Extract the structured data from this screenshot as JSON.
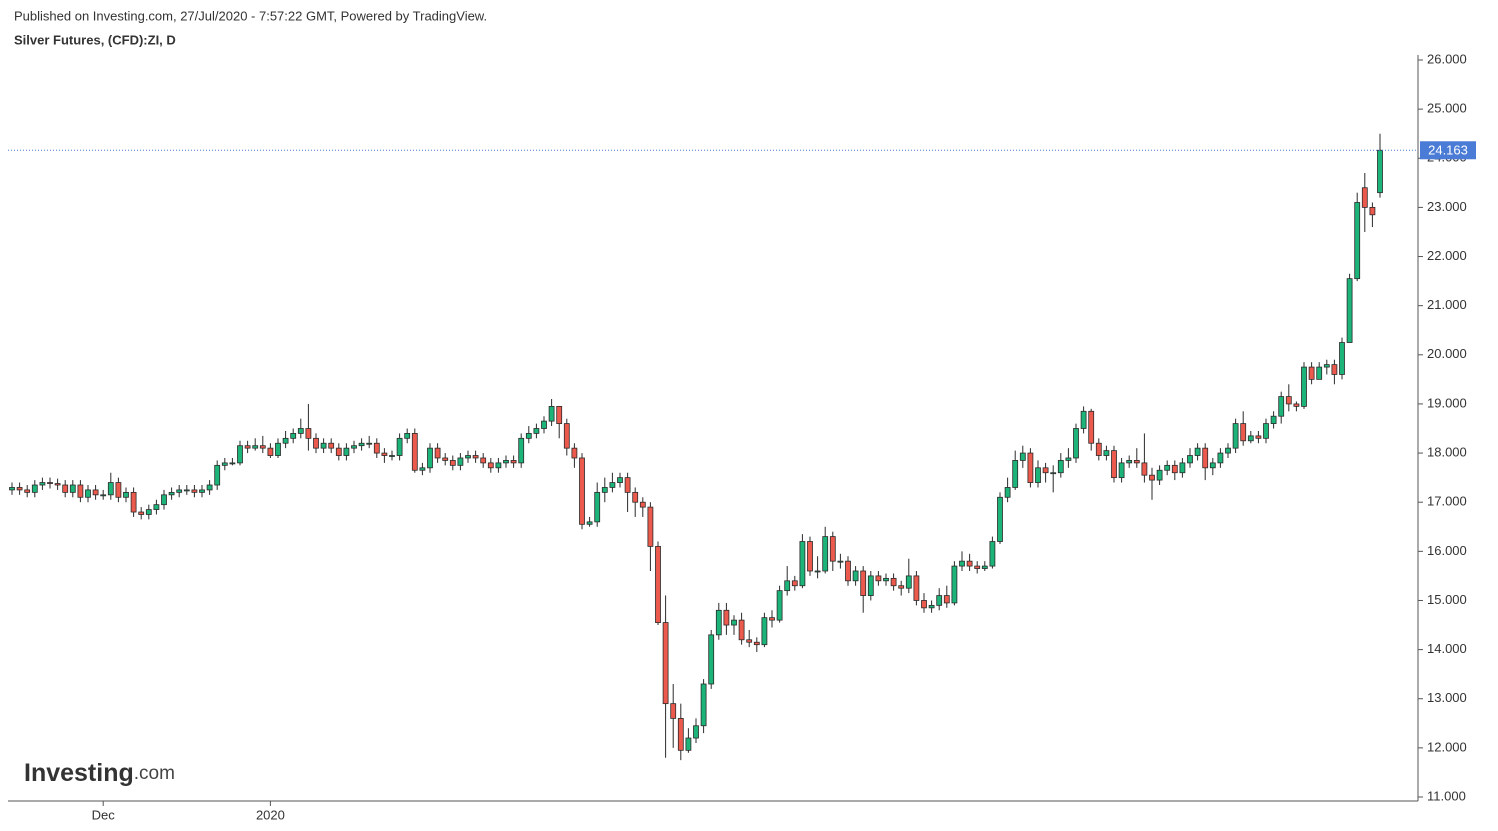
{
  "chart_data": {
    "type": "candlestick",
    "source": "Published on Investing.com, 27/Jul/2020 - 7:57:22 GMT, Powered by TradingView.",
    "title": "Silver Futures, (CFD):ZI, D",
    "watermark": "Investing",
    "watermark_suffix": ".com",
    "up_color": "#1db47a",
    "down_color": "#ec5a4e",
    "price_line_color": "#4a7bd6",
    "last_price": 24.163,
    "ylim": [
      11,
      26
    ],
    "yticks": [
      {
        "value": 11,
        "label": "11.000"
      },
      {
        "value": 12,
        "label": "12.000"
      },
      {
        "value": 13,
        "label": "13.000"
      },
      {
        "value": 14,
        "label": "14.000"
      },
      {
        "value": 15,
        "label": "15.000"
      },
      {
        "value": 16,
        "label": "16.000"
      },
      {
        "value": 17,
        "label": "17.000"
      },
      {
        "value": 18,
        "label": "18.000"
      },
      {
        "value": 19,
        "label": "19.000"
      },
      {
        "value": 20,
        "label": "20.000"
      },
      {
        "value": 21,
        "label": "21.000"
      },
      {
        "value": 22,
        "label": "22.000"
      },
      {
        "value": 23,
        "label": "23.000"
      },
      {
        "value": 24,
        "label": "24.000"
      },
      {
        "value": 25,
        "label": "25.000"
      },
      {
        "value": 26,
        "label": "26.000"
      }
    ],
    "categories": [
      null,
      null,
      null,
      null,
      null,
      null,
      null,
      null,
      null,
      null,
      null,
      null,
      "Dec",
      null,
      null,
      null,
      null,
      null,
      null,
      null,
      null,
      null,
      null,
      null,
      null,
      null,
      null,
      null,
      null,
      null,
      null,
      null,
      null,
      null,
      "2020",
      null,
      null,
      null,
      null,
      null,
      null,
      null,
      null,
      null,
      null,
      null,
      null,
      null,
      null,
      null,
      null,
      null,
      null,
      null,
      null,
      null,
      null,
      null,
      null,
      null,
      null,
      null,
      null,
      null,
      null,
      null,
      null,
      null,
      null,
      null,
      null,
      null,
      null,
      null,
      null,
      null,
      null,
      null,
      null,
      null,
      null,
      null,
      null,
      null,
      null,
      null,
      null,
      null,
      null,
      null,
      null,
      null,
      null,
      null,
      null,
      null,
      null,
      null,
      null,
      null,
      null,
      null,
      null,
      null,
      null,
      null,
      null,
      null,
      null,
      null,
      null,
      null,
      null,
      null,
      null,
      null,
      null,
      null,
      null,
      null,
      null,
      null,
      null,
      null,
      null,
      null,
      null,
      null,
      null,
      null,
      null,
      null,
      null,
      null,
      null,
      null,
      null,
      null,
      null,
      null,
      null,
      null,
      null,
      null,
      null,
      null,
      null,
      null,
      null,
      null,
      null,
      null,
      null,
      null,
      null,
      null,
      null,
      null,
      null,
      null,
      null,
      null,
      null,
      null,
      null,
      null,
      null,
      null,
      null,
      null,
      null,
      null,
      null,
      null,
      null,
      null,
      null,
      null,
      null,
      null,
      null
    ],
    "open": [
      17.25,
      17.3,
      17.25,
      17.2,
      17.35,
      17.4,
      17.38,
      17.35,
      17.2,
      17.35,
      17.1,
      17.25,
      17.15,
      17.15,
      17.4,
      17.1,
      17.2,
      16.8,
      16.75,
      16.85,
      16.95,
      17.15,
      17.2,
      17.25,
      17.25,
      17.2,
      17.25,
      17.35,
      17.75,
      17.8,
      17.8,
      18.15,
      18.1,
      18.15,
      18.1,
      17.95,
      18.2,
      18.3,
      18.4,
      18.5,
      18.3,
      18.1,
      18.2,
      18.1,
      17.95,
      18.1,
      18.15,
      18.2,
      18.2,
      18.0,
      17.95,
      17.95,
      18.3,
      18.4,
      17.65,
      17.7,
      18.1,
      17.9,
      17.85,
      17.75,
      17.9,
      17.95,
      17.9,
      17.8,
      17.7,
      17.8,
      17.85,
      17.8,
      18.3,
      18.4,
      18.5,
      18.65,
      18.95,
      18.6,
      18.1,
      17.9,
      16.55,
      16.6,
      17.2,
      17.3,
      17.4,
      17.5,
      17.2,
      17.0,
      16.9,
      16.1,
      14.55,
      12.9,
      12.6,
      11.95,
      12.2,
      12.45,
      13.3,
      14.3,
      14.8,
      14.5,
      14.6,
      14.2,
      14.15,
      14.1,
      14.65,
      14.6,
      15.2,
      15.4,
      15.3,
      16.2,
      15.6,
      15.6,
      16.3,
      15.8,
      15.8,
      15.4,
      15.6,
      15.1,
      15.5,
      15.4,
      15.45,
      15.3,
      15.25,
      15.5,
      15.0,
      14.85,
      14.9,
      15.1,
      14.95,
      15.7,
      15.8,
      15.7,
      15.65,
      15.7,
      16.2,
      17.1,
      17.3,
      17.85,
      18.0,
      17.4,
      17.7,
      17.6,
      17.6,
      17.85,
      17.9,
      18.5,
      18.85,
      18.2,
      17.95,
      18.05,
      17.5,
      17.8,
      17.85,
      17.8,
      17.55,
      17.45,
      17.65,
      17.75,
      17.6,
      17.8,
      17.95,
      18.1,
      17.7,
      17.8,
      18.0,
      18.1,
      18.6,
      18.25,
      18.35,
      18.3,
      18.6,
      18.75,
      19.15,
      19.0,
      18.95,
      19.75,
      19.5,
      19.75,
      19.8,
      19.6,
      20.25,
      21.55,
      23.4,
      23.0,
      23.3
    ],
    "high": [
      17.4,
      17.4,
      17.35,
      17.45,
      17.5,
      17.5,
      17.48,
      17.45,
      17.45,
      17.45,
      17.35,
      17.35,
      17.25,
      17.6,
      17.5,
      17.3,
      17.3,
      16.9,
      16.95,
      17.05,
      17.25,
      17.3,
      17.35,
      17.35,
      17.35,
      17.35,
      17.45,
      17.85,
      17.9,
      17.9,
      18.25,
      18.25,
      18.3,
      18.35,
      18.2,
      18.3,
      18.45,
      18.5,
      18.7,
      19.0,
      18.4,
      18.3,
      18.3,
      18.2,
      18.2,
      18.25,
      18.3,
      18.35,
      18.3,
      18.1,
      18.05,
      18.4,
      18.5,
      18.5,
      17.8,
      18.2,
      18.2,
      18.0,
      17.95,
      18.0,
      18.05,
      18.05,
      18.0,
      17.9,
      17.9,
      17.95,
      17.95,
      18.4,
      18.55,
      18.6,
      18.75,
      19.1,
      18.95,
      18.7,
      18.2,
      18.0,
      16.7,
      17.4,
      17.5,
      17.6,
      17.6,
      17.6,
      17.3,
      17.1,
      17.0,
      16.2,
      15.1,
      13.3,
      12.9,
      12.4,
      12.6,
      13.4,
      14.4,
      14.95,
      14.95,
      14.7,
      14.75,
      14.4,
      14.25,
      14.75,
      14.8,
      15.3,
      15.7,
      15.5,
      16.35,
      16.3,
      15.9,
      16.5,
      16.4,
      15.95,
      15.9,
      15.7,
      15.7,
      15.6,
      15.6,
      15.55,
      15.55,
      15.4,
      15.85,
      15.6,
      15.15,
      15.0,
      15.25,
      15.3,
      15.8,
      16.0,
      15.95,
      15.8,
      15.8,
      16.3,
      17.2,
      17.5,
      18.05,
      18.15,
      18.1,
      17.85,
      17.8,
      17.75,
      18.0,
      18.1,
      18.6,
      18.95,
      18.9,
      18.3,
      18.15,
      18.15,
      17.9,
      17.95,
      18.1,
      18.4,
      17.7,
      17.75,
      17.85,
      17.85,
      17.9,
      18.1,
      18.2,
      18.2,
      17.9,
      18.1,
      18.2,
      18.7,
      18.85,
      18.45,
      18.45,
      18.7,
      18.85,
      19.25,
      19.4,
      19.05,
      19.85,
      19.85,
      19.85,
      19.9,
      19.9,
      20.35,
      21.65,
      23.3,
      23.7,
      23.1,
      24.5
    ],
    "low": [
      17.15,
      17.15,
      17.1,
      17.1,
      17.25,
      17.28,
      17.25,
      17.1,
      17.1,
      17.0,
      17.0,
      17.05,
      17.05,
      17.05,
      17.0,
      17.0,
      16.7,
      16.65,
      16.65,
      16.75,
      16.85,
      17.05,
      17.1,
      17.15,
      17.1,
      17.1,
      17.15,
      17.25,
      17.65,
      17.75,
      17.75,
      18.0,
      18.05,
      18.0,
      17.9,
      17.9,
      18.1,
      18.2,
      18.3,
      18.05,
      18.0,
      18.0,
      18.0,
      17.85,
      17.85,
      18.0,
      18.05,
      18.1,
      17.9,
      17.8,
      17.85,
      17.85,
      18.2,
      17.6,
      17.55,
      17.6,
      17.8,
      17.75,
      17.65,
      17.65,
      17.8,
      17.8,
      17.7,
      17.6,
      17.6,
      17.7,
      17.7,
      17.7,
      18.2,
      18.3,
      18.4,
      18.55,
      18.3,
      17.95,
      17.7,
      16.45,
      16.5,
      16.5,
      17.0,
      17.2,
      17.3,
      16.8,
      16.7,
      16.7,
      15.6,
      14.5,
      11.8,
      12.0,
      11.75,
      11.9,
      12.1,
      12.3,
      13.2,
      14.2,
      14.3,
      14.3,
      14.1,
      14.05,
      13.95,
      14.05,
      14.45,
      14.55,
      15.1,
      15.2,
      15.25,
      15.5,
      15.45,
      15.55,
      15.6,
      15.65,
      15.3,
      15.3,
      14.75,
      15.0,
      15.3,
      15.3,
      15.2,
      15.1,
      15.15,
      14.9,
      14.75,
      14.75,
      14.8,
      14.85,
      14.9,
      15.6,
      15.6,
      15.55,
      15.6,
      15.65,
      16.15,
      17.0,
      17.25,
      17.7,
      17.3,
      17.3,
      17.4,
      17.2,
      17.5,
      17.7,
      17.8,
      18.4,
      18.05,
      17.85,
      17.85,
      17.4,
      17.4,
      17.7,
      17.7,
      17.4,
      17.05,
      17.35,
      17.55,
      17.45,
      17.5,
      17.7,
      17.85,
      17.45,
      17.55,
      17.7,
      17.9,
      18.0,
      18.15,
      18.2,
      18.2,
      18.2,
      18.5,
      18.6,
      18.85,
      18.85,
      18.9,
      19.4,
      19.5,
      19.6,
      19.4,
      19.5,
      20.25,
      21.5,
      22.5,
      22.6,
      23.2
    ],
    "close": [
      17.3,
      17.25,
      17.2,
      17.35,
      17.4,
      17.38,
      17.35,
      17.2,
      17.35,
      17.1,
      17.25,
      17.15,
      17.15,
      17.4,
      17.1,
      17.2,
      16.8,
      16.75,
      16.85,
      16.95,
      17.15,
      17.2,
      17.25,
      17.25,
      17.2,
      17.25,
      17.35,
      17.75,
      17.8,
      17.8,
      18.15,
      18.1,
      18.15,
      18.1,
      17.95,
      18.2,
      18.3,
      18.4,
      18.5,
      18.3,
      18.1,
      18.2,
      18.1,
      17.95,
      18.1,
      18.15,
      18.2,
      18.2,
      18.0,
      17.95,
      17.95,
      18.3,
      18.4,
      17.65,
      17.7,
      18.1,
      17.9,
      17.85,
      17.75,
      17.9,
      17.95,
      17.9,
      17.8,
      17.7,
      17.8,
      17.85,
      17.8,
      18.3,
      18.4,
      18.5,
      18.65,
      18.95,
      18.6,
      18.1,
      17.9,
      16.55,
      16.6,
      17.2,
      17.3,
      17.4,
      17.5,
      17.2,
      17.0,
      16.9,
      16.1,
      14.55,
      12.9,
      12.6,
      11.95,
      12.2,
      12.45,
      13.3,
      14.3,
      14.8,
      14.5,
      14.6,
      14.2,
      14.15,
      14.1,
      14.65,
      14.6,
      15.2,
      15.4,
      15.3,
      16.2,
      15.6,
      15.6,
      16.3,
      15.8,
      15.8,
      15.4,
      15.6,
      15.1,
      15.5,
      15.4,
      15.45,
      15.3,
      15.25,
      15.5,
      15.0,
      14.85,
      14.9,
      15.1,
      14.95,
      15.7,
      15.8,
      15.7,
      15.65,
      15.7,
      16.2,
      17.1,
      17.3,
      17.85,
      18.0,
      17.4,
      17.7,
      17.6,
      17.6,
      17.85,
      17.9,
      18.5,
      18.85,
      18.2,
      17.95,
      18.05,
      17.5,
      17.8,
      17.85,
      17.8,
      17.55,
      17.45,
      17.65,
      17.75,
      17.6,
      17.8,
      17.95,
      18.1,
      17.7,
      17.8,
      18.0,
      18.1,
      18.6,
      18.25,
      18.35,
      18.3,
      18.6,
      18.75,
      19.15,
      19.0,
      18.95,
      19.75,
      19.5,
      19.75,
      19.8,
      19.6,
      20.25,
      21.55,
      23.1,
      23.0,
      22.85,
      24.163
    ]
  }
}
